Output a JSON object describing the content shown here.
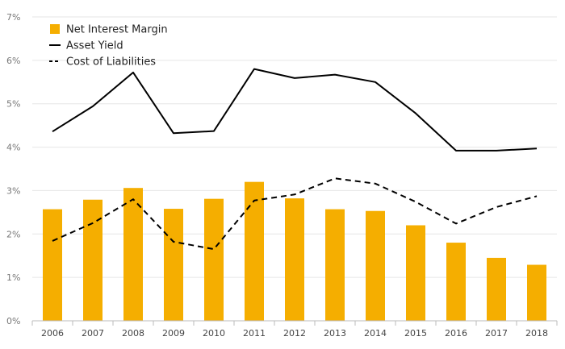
{
  "chart_data": {
    "type": "bar",
    "categories": [
      "2006",
      "2007",
      "2008",
      "2009",
      "2010",
      "2011",
      "2012",
      "2013",
      "2014",
      "2015",
      "2016",
      "2017",
      "2018"
    ],
    "series": [
      {
        "name": "Net Interest Margin",
        "kind": "bar",
        "color": "#F5AE00",
        "values": [
          2.57,
          2.79,
          3.06,
          2.58,
          2.81,
          3.2,
          2.82,
          2.57,
          2.53,
          2.2,
          1.8,
          1.45,
          1.29
        ]
      },
      {
        "name": "Asset Yield",
        "kind": "line",
        "style": "solid",
        "color": "#000000",
        "values": [
          4.36,
          4.94,
          5.72,
          4.32,
          4.37,
          5.8,
          5.59,
          5.67,
          5.5,
          4.78,
          3.92,
          3.92,
          3.97
        ]
      },
      {
        "name": "Cost of Liabilities",
        "kind": "line",
        "style": "dashed",
        "color": "#000000",
        "values": [
          1.84,
          2.25,
          2.8,
          1.82,
          1.65,
          2.77,
          2.91,
          3.28,
          3.16,
          2.74,
          2.24,
          2.62,
          2.87
        ]
      }
    ],
    "ylim": [
      0,
      7
    ],
    "yticks": [
      0,
      1,
      2,
      3,
      4,
      5,
      6,
      7
    ],
    "ytick_labels": [
      "0%",
      "1%",
      "2%",
      "3%",
      "4%",
      "5%",
      "6%",
      "7%"
    ],
    "grid": true,
    "legend_position": "top-left"
  }
}
